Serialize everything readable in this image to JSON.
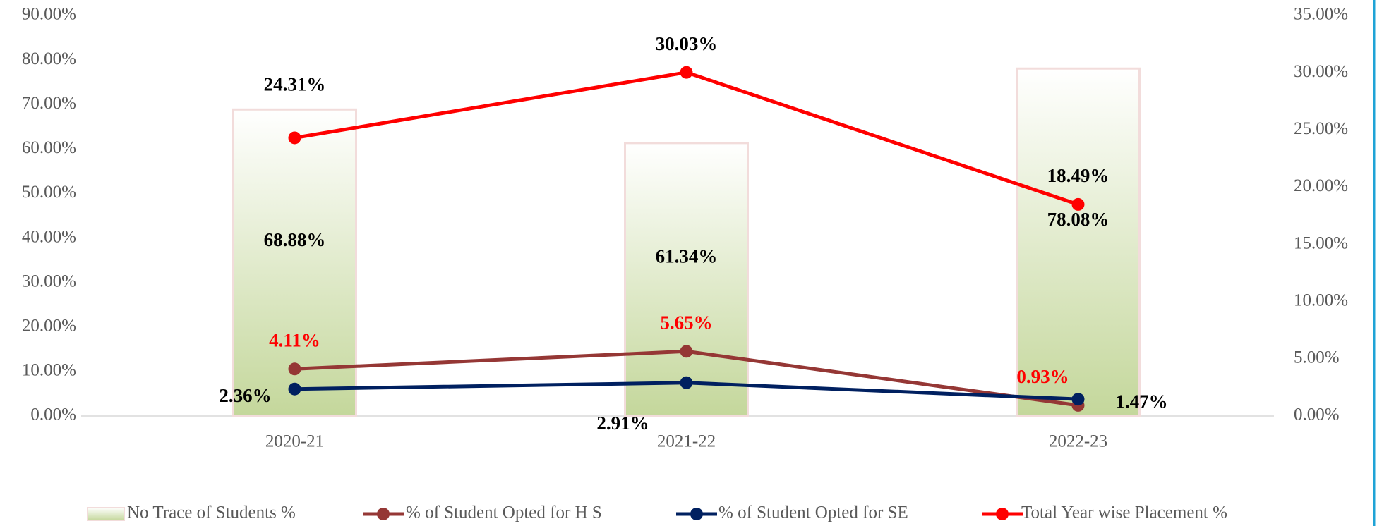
{
  "chart_data": {
    "type": "bar-line",
    "categories": [
      "2020-21",
      "2021-22",
      "2022-23"
    ],
    "ylim": [
      0,
      90
    ],
    "yticks": [
      {
        "value": 0,
        "label": "0.00%"
      },
      {
        "value": 10,
        "label": "10.00%"
      },
      {
        "value": 20,
        "label": "20.00%"
      },
      {
        "value": 30,
        "label": "30.00%"
      },
      {
        "value": 40,
        "label": "40.00%"
      },
      {
        "value": 50,
        "label": "50.00%"
      },
      {
        "value": 60,
        "label": "60.00%"
      },
      {
        "value": 70,
        "label": "70.00%"
      },
      {
        "value": 80,
        "label": "80.00%"
      },
      {
        "value": 90,
        "label": "90.00%"
      }
    ],
    "y2lim": [
      0,
      35
    ],
    "y2ticks": [
      {
        "value": 0,
        "label": "0.00%"
      },
      {
        "value": 5,
        "label": "5.00%"
      },
      {
        "value": 10,
        "label": "10.00%"
      },
      {
        "value": 15,
        "label": "15.00%"
      },
      {
        "value": 20,
        "label": "20.00%"
      },
      {
        "value": 25,
        "label": "25.00%"
      },
      {
        "value": 30,
        "label": "30.00%"
      },
      {
        "value": 35,
        "label": "35.00%"
      }
    ],
    "series": [
      {
        "name": "No Trace of Students %",
        "type": "bar",
        "color": "#c4d79b",
        "values": [
          68.88,
          61.34,
          78.08
        ],
        "value_labels": [
          "68.88%",
          "61.34%",
          "78.08%"
        ]
      },
      {
        "name": "% of Student Opted for H S",
        "type": "line",
        "axis": "y2",
        "color": "#953735",
        "values": [
          4.11,
          5.65,
          0.93
        ],
        "value_labels": [
          "4.11%",
          "5.65%",
          "0.93%"
        ]
      },
      {
        "name": "% of Student Opted for SE",
        "type": "line",
        "axis": "y2",
        "color": "#002060",
        "values": [
          2.36,
          2.91,
          1.47
        ],
        "value_labels": [
          "2.36%",
          "2.91%",
          "1.47%"
        ]
      },
      {
        "name": "Total Year wise Placement %",
        "type": "line",
        "axis": "y2",
        "color": "#ff0000",
        "values": [
          24.31,
          30.03,
          18.49
        ],
        "value_labels": [
          "24.31%",
          "30.03%",
          "18.49%"
        ]
      }
    ],
    "legend": "bottom"
  }
}
